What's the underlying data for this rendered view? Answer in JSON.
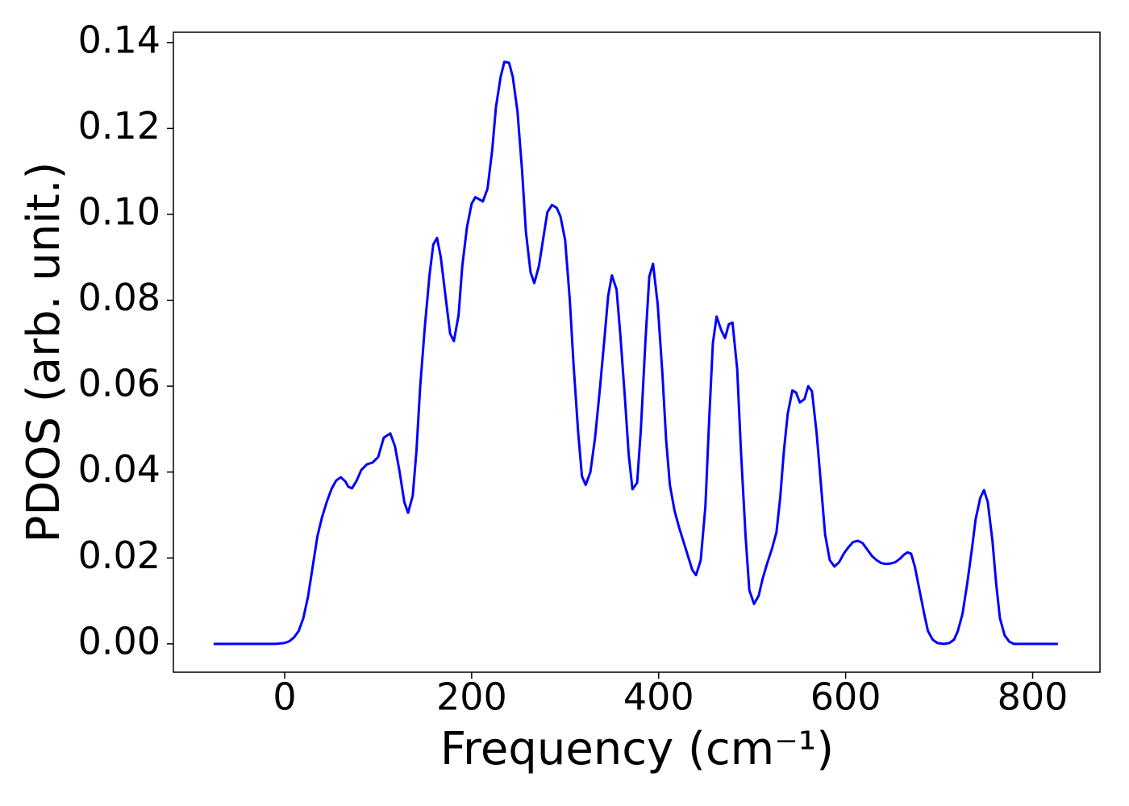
{
  "chart_data": {
    "type": "line",
    "x_label": "Frequency (cm⁻¹)",
    "y_label": "PDOS (arb. unit.)",
    "xlim": [
      -119,
      872
    ],
    "ylim": [
      -0.0066,
      0.1424
    ],
    "xticks": [
      0,
      200,
      400,
      600,
      800
    ],
    "yticks": [
      {
        "value": 0,
        "label": "0.00"
      },
      {
        "value": 0.02,
        "label": "0.02"
      },
      {
        "value": 0.04,
        "label": "0.04"
      },
      {
        "value": 0.06,
        "label": "0.06"
      },
      {
        "value": 0.08,
        "label": "0.08"
      },
      {
        "value": 0.1,
        "label": "0.10"
      },
      {
        "value": 0.12,
        "label": "0.12"
      },
      {
        "value": 0.14,
        "label": "0.14"
      }
    ],
    "grid": false,
    "series": [
      {
        "color": "#0000ff",
        "x": [
          -76,
          -40,
          -10,
          0,
          5,
          10,
          15,
          20,
          25,
          30,
          35,
          40,
          45,
          50,
          55,
          60,
          65,
          68,
          72,
          77,
          82,
          88,
          94,
          100,
          106,
          113,
          118,
          123,
          128,
          132,
          137,
          141,
          145,
          150,
          155,
          159,
          163,
          167,
          172,
          177,
          181,
          186,
          190,
          195,
          200,
          204,
          212,
          217,
          222,
          226,
          231,
          235,
          240,
          244,
          249,
          254,
          258,
          263,
          267,
          272,
          277,
          281,
          286,
          291,
          295,
          300,
          305,
          309,
          314,
          318,
          322,
          327,
          332,
          337,
          342,
          346,
          350,
          355,
          359,
          364,
          368,
          372,
          377,
          381,
          386,
          390,
          394,
          399,
          404,
          408,
          412,
          417,
          422,
          427,
          432,
          436,
          440,
          445,
          450,
          454,
          458,
          462,
          467,
          471,
          475,
          479,
          484,
          488,
          493,
          497,
          502,
          507,
          511,
          516,
          521,
          526,
          530,
          534,
          538,
          543,
          547,
          551,
          556,
          560,
          564,
          569,
          574,
          578,
          583,
          588,
          593,
          598,
          603,
          608,
          613,
          618,
          623,
          628,
          633,
          638,
          643,
          648,
          653,
          658,
          662,
          666,
          670,
          674,
          679,
          684,
          688,
          693,
          698,
          705,
          711,
          716,
          720,
          725,
          730,
          735,
          739,
          744,
          748,
          752,
          757,
          761,
          765,
          770,
          775,
          780,
          800,
          827
        ],
        "values": [
          0,
          0,
          0,
          0.0002,
          0.0006,
          0.0015,
          0.003,
          0.006,
          0.011,
          0.018,
          0.025,
          0.0295,
          0.033,
          0.036,
          0.038,
          0.0388,
          0.0378,
          0.0366,
          0.0362,
          0.038,
          0.0405,
          0.0418,
          0.0422,
          0.0435,
          0.048,
          0.049,
          0.046,
          0.04,
          0.033,
          0.0305,
          0.0345,
          0.045,
          0.06,
          0.074,
          0.086,
          0.093,
          0.0945,
          0.09,
          0.081,
          0.0722,
          0.0705,
          0.0765,
          0.088,
          0.097,
          0.1025,
          0.104,
          0.103,
          0.106,
          0.115,
          0.125,
          0.132,
          0.1355,
          0.1353,
          0.132,
          0.124,
          0.11,
          0.096,
          0.0865,
          0.084,
          0.088,
          0.095,
          0.1005,
          0.1022,
          0.1015,
          0.0995,
          0.094,
          0.08,
          0.065,
          0.049,
          0.039,
          0.037,
          0.04,
          0.048,
          0.059,
          0.071,
          0.081,
          0.0858,
          0.0825,
          0.072,
          0.057,
          0.044,
          0.036,
          0.0375,
          0.05,
          0.071,
          0.0855,
          0.0885,
          0.079,
          0.063,
          0.0475,
          0.037,
          0.031,
          0.027,
          0.0235,
          0.02,
          0.0172,
          0.016,
          0.0195,
          0.032,
          0.052,
          0.07,
          0.0762,
          0.073,
          0.0712,
          0.0744,
          0.0748,
          0.064,
          0.045,
          0.025,
          0.0125,
          0.0093,
          0.0112,
          0.015,
          0.0187,
          0.022,
          0.026,
          0.034,
          0.045,
          0.0535,
          0.059,
          0.0585,
          0.0562,
          0.057,
          0.06,
          0.0588,
          0.049,
          0.036,
          0.0255,
          0.0195,
          0.018,
          0.019,
          0.021,
          0.0225,
          0.0237,
          0.024,
          0.0235,
          0.022,
          0.0205,
          0.0195,
          0.0188,
          0.0186,
          0.0187,
          0.019,
          0.0198,
          0.0207,
          0.0213,
          0.021,
          0.018,
          0.0125,
          0.007,
          0.003,
          0.001,
          0.0002,
          0,
          0.0002,
          0.001,
          0.003,
          0.007,
          0.014,
          0.022,
          0.029,
          0.034,
          0.0358,
          0.033,
          0.024,
          0.014,
          0.006,
          0.002,
          0.0005,
          0,
          0,
          0
        ]
      }
    ]
  }
}
